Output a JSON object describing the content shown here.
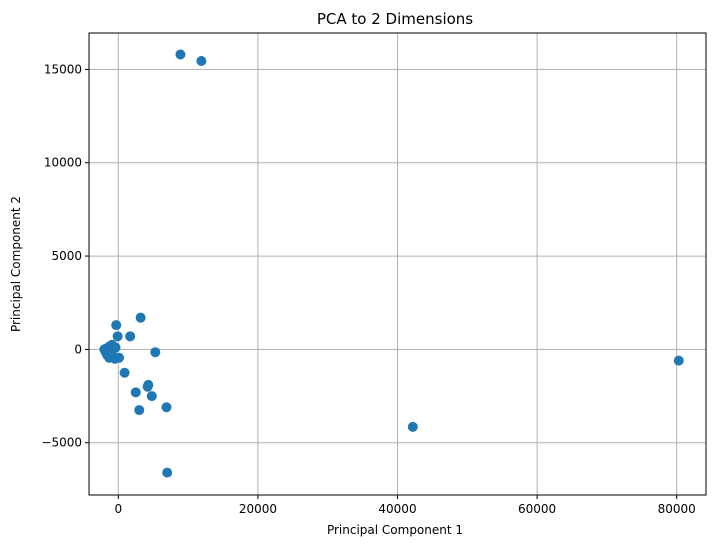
{
  "chart_data": {
    "type": "scatter",
    "title": "PCA to 2 Dimensions",
    "xlabel": "Principal Component 1",
    "ylabel": "Principal Component 2",
    "xlim": [
      -4200,
      84200
    ],
    "ylim": [
      -7800,
      16950
    ],
    "grid": true,
    "point_color": "#1f77b4",
    "x_ticks": [
      {
        "value": 0,
        "label": "0"
      },
      {
        "value": 20000,
        "label": "20000"
      },
      {
        "value": 40000,
        "label": "40000"
      },
      {
        "value": 60000,
        "label": "60000"
      },
      {
        "value": 80000,
        "label": "80000"
      }
    ],
    "y_ticks": [
      {
        "value": -5000,
        "label": "−5000"
      },
      {
        "value": 0,
        "label": "0"
      },
      {
        "value": 5000,
        "label": "5000"
      },
      {
        "value": 10000,
        "label": "10000"
      },
      {
        "value": 15000,
        "label": "15000"
      }
    ],
    "points": [
      {
        "x": 8900,
        "y": 15800
      },
      {
        "x": 11900,
        "y": 15450
      },
      {
        "x": 80300,
        "y": -600
      },
      {
        "x": 42200,
        "y": -4150
      },
      {
        "x": 7000,
        "y": -6600
      },
      {
        "x": 3200,
        "y": 1700
      },
      {
        "x": -300,
        "y": 1300
      },
      {
        "x": 1700,
        "y": 700
      },
      {
        "x": -100,
        "y": 700
      },
      {
        "x": 5300,
        "y": -150
      },
      {
        "x": 100,
        "y": -450
      },
      {
        "x": 900,
        "y": -1250
      },
      {
        "x": 4300,
        "y": -1900
      },
      {
        "x": 4200,
        "y": -2000
      },
      {
        "x": 2500,
        "y": -2300
      },
      {
        "x": 4800,
        "y": -2500
      },
      {
        "x": 6900,
        "y": -3100
      },
      {
        "x": 3000,
        "y": -3250
      },
      {
        "x": -900,
        "y": 250
      },
      {
        "x": -1300,
        "y": 150
      },
      {
        "x": -1700,
        "y": 50
      },
      {
        "x": -2000,
        "y": 0
      },
      {
        "x": -1500,
        "y": -100
      },
      {
        "x": -1800,
        "y": -150
      },
      {
        "x": -1200,
        "y": -200
      },
      {
        "x": -1600,
        "y": -300
      },
      {
        "x": -1000,
        "y": -350
      },
      {
        "x": -700,
        "y": -400
      },
      {
        "x": -1300,
        "y": -450
      },
      {
        "x": -500,
        "y": -500
      },
      {
        "x": -900,
        "y": -100
      },
      {
        "x": -400,
        "y": 100
      }
    ]
  }
}
